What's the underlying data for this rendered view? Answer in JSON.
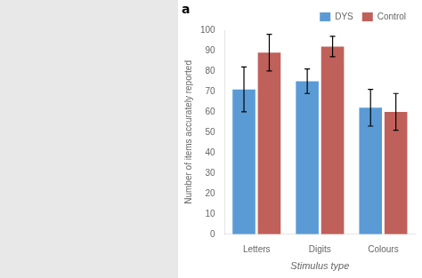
{
  "chart_data": {
    "type": "bar",
    "categories": [
      "Letters",
      "Digits",
      "Colours"
    ],
    "series": [
      {
        "name": "DYS",
        "color": "#5B9BD5",
        "values": [
          71,
          75,
          62
        ],
        "errors": [
          11,
          6,
          9
        ]
      },
      {
        "name": "Control",
        "color": "#C0605A",
        "values": [
          89,
          92,
          60
        ],
        "errors": [
          9,
          5,
          9
        ]
      }
    ],
    "xlabel": "Stimulus type",
    "ylabel": "Number of items accurately reported",
    "ylim": [
      0,
      100
    ],
    "yticks": [
      0,
      10,
      20,
      30,
      40,
      50,
      60,
      70,
      80,
      90,
      100
    ],
    "grid": false,
    "legend": "upper right",
    "annotations": [
      "a"
    ]
  }
}
